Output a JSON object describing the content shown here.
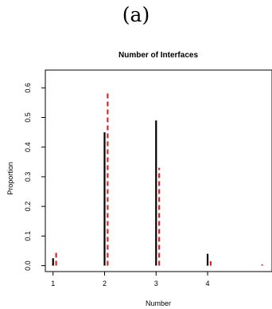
{
  "panel_label": "(a)",
  "chart_data": {
    "type": "bar",
    "title": "Number of Interfaces",
    "xlabel": "Number",
    "ylabel": "Proportion",
    "categories": [
      "1",
      "2",
      "3",
      "4"
    ],
    "x": [
      1,
      2,
      3,
      4,
      5
    ],
    "x_ticks": [
      1,
      2,
      3,
      4
    ],
    "xlim": [
      0.85,
      5.25
    ],
    "ylim": [
      -0.02,
      0.66
    ],
    "y_ticks": [
      0.0,
      0.1,
      0.2,
      0.3,
      0.4,
      0.5,
      0.6
    ],
    "y_tick_labels": [
      "0.0",
      "0.1",
      "0.2",
      "0.3",
      "0.4",
      "0.5",
      "0.6"
    ],
    "grid": false,
    "series": [
      {
        "style": "solid",
        "color": "#000000",
        "offset": 0,
        "values": [
          0.025,
          0.45,
          0.49,
          0.04,
          0.0
        ]
      },
      {
        "style": "dashed",
        "color": "#d62728",
        "offset": 0.06,
        "values": [
          0.05,
          0.585,
          0.33,
          0.015,
          0.004
        ]
      }
    ]
  }
}
